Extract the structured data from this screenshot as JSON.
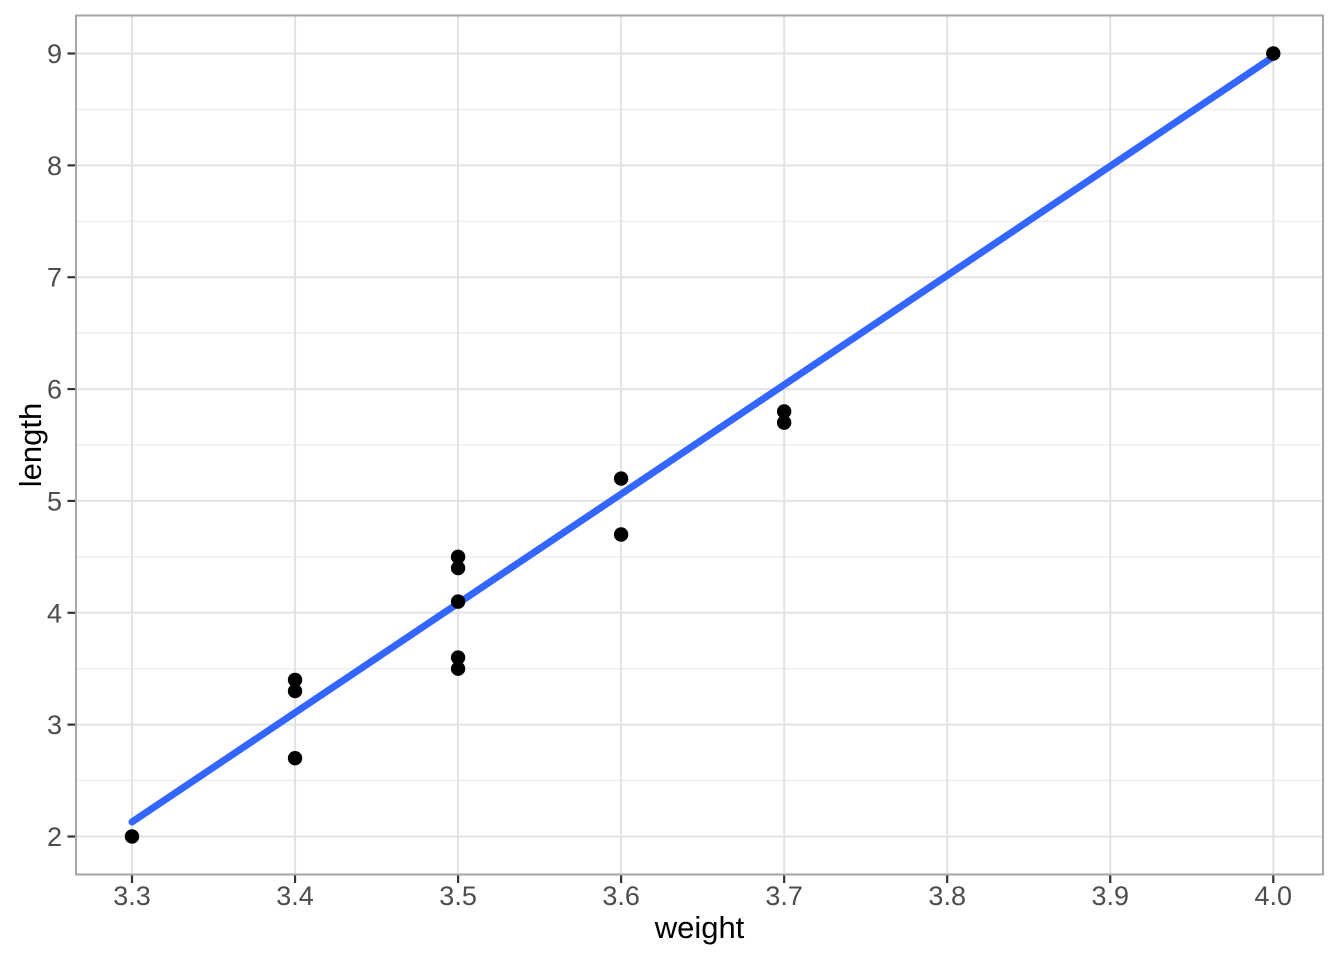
{
  "chart_data": {
    "type": "scatter",
    "title": "",
    "xlabel": "weight",
    "ylabel": "length",
    "x_ticks": [
      3.3,
      3.4,
      3.5,
      3.6,
      3.7,
      3.8,
      3.9,
      4.0
    ],
    "x_tick_labels": [
      "3.3",
      "3.4",
      "3.5",
      "3.6",
      "3.7",
      "3.8",
      "3.9",
      "4.0"
    ],
    "y_ticks": [
      2,
      3,
      4,
      5,
      6,
      7,
      8,
      9
    ],
    "y_tick_labels": [
      "2",
      "3",
      "4",
      "5",
      "6",
      "7",
      "8",
      "9"
    ],
    "y_minor_ticks": [
      2.5,
      3.5,
      4.5,
      5.5,
      6.5,
      7.5,
      8.5
    ],
    "x_range_shown": [
      3.265,
      4.031
    ],
    "y_range_shown": [
      1.665,
      9.335
    ],
    "grid": "major-and-horizontal-minor",
    "legend_position": "none",
    "points": [
      {
        "x": 3.3,
        "y": 2.0
      },
      {
        "x": 3.4,
        "y": 2.7
      },
      {
        "x": 3.4,
        "y": 3.3
      },
      {
        "x": 3.4,
        "y": 3.4
      },
      {
        "x": 3.5,
        "y": 3.5
      },
      {
        "x": 3.5,
        "y": 3.6
      },
      {
        "x": 3.5,
        "y": 4.1
      },
      {
        "x": 3.5,
        "y": 4.4
      },
      {
        "x": 3.5,
        "y": 4.5
      },
      {
        "x": 3.6,
        "y": 4.7
      },
      {
        "x": 3.6,
        "y": 5.2
      },
      {
        "x": 3.7,
        "y": 5.7
      },
      {
        "x": 3.7,
        "y": 5.8
      },
      {
        "x": 4.0,
        "y": 9.0
      }
    ],
    "smooth_line": {
      "kind": "linear-fit",
      "x1": 3.3,
      "y1": 2.13,
      "x2": 4.0,
      "y2": 8.97
    },
    "colors": {
      "background": "#FFFFFF",
      "panel_background": "#FFFFFF",
      "panel_border": "#A6A6A6",
      "grid_major": "#E3E3E3",
      "grid_minor": "#EFEFEF",
      "tick_mark": "#333333",
      "tick_label": "#4D4D4D",
      "axis_title": "#000000",
      "point": "#000000",
      "smooth_line": "#3366FF"
    }
  }
}
